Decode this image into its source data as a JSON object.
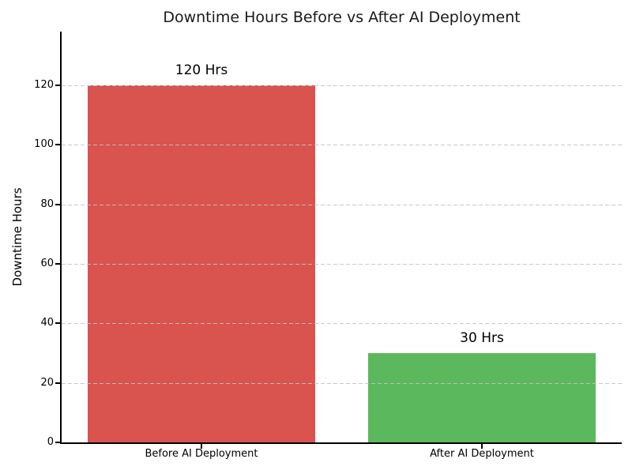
{
  "chart_data": {
    "type": "bar",
    "title": "Downtime Hours Before vs After AI Deployment",
    "categories": [
      "Before AI Deployment",
      "After AI Deployment"
    ],
    "values": [
      120,
      30
    ],
    "bar_value_labels": [
      "120 Hrs",
      "30 Hrs"
    ],
    "bar_colors": [
      "#d9534f",
      "#5cb85c"
    ],
    "xlabel": "",
    "ylabel": "Downtime Hours",
    "ylim": [
      0,
      138
    ],
    "yticks": [
      0,
      20,
      40,
      60,
      80,
      100,
      120
    ],
    "grid": "horizontal-dashed",
    "grid_color": "#c8c8c8",
    "legend_position": "none",
    "background_color": "#ffffff",
    "text_color": "#000000"
  }
}
